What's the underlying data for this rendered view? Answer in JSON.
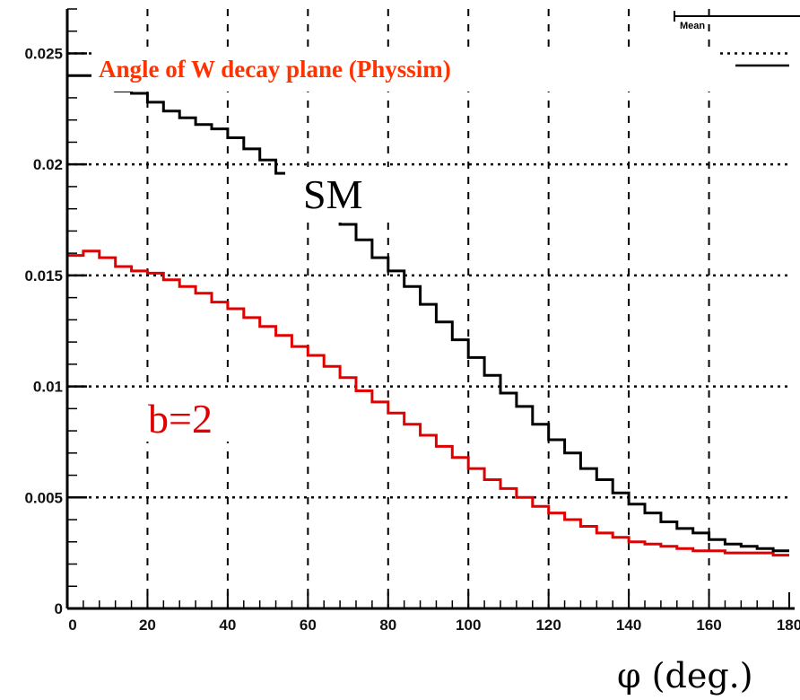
{
  "chart_data": {
    "type": "line",
    "title": "Angle of W decay plane (Physsim)",
    "xlabel": "φ (deg.)",
    "ylabel": "",
    "xlim": [
      0,
      180
    ],
    "ylim": [
      0,
      0.027
    ],
    "xticks": [
      "0",
      "20",
      "40",
      "60",
      "80",
      "100",
      "120",
      "140",
      "160",
      "180"
    ],
    "yticks": [
      "0",
      "0.005",
      "0.01",
      "0.015",
      "0.02",
      "0.025"
    ],
    "grid": true,
    "stats_box_label": "Mean",
    "annotations": [
      {
        "text": "SM",
        "color": "#000000"
      },
      {
        "text": "b=2",
        "color": "#e00000"
      }
    ],
    "series": [
      {
        "name": "SM",
        "color": "#000000",
        "bin_width": 4,
        "values": [
          0.024,
          0.024,
          0.0236,
          0.0233,
          0.0232,
          0.0228,
          0.0224,
          0.0221,
          0.0218,
          0.0216,
          0.0212,
          0.0207,
          0.0202,
          0.0196,
          0.0191,
          0.0186,
          0.018,
          0.0173,
          0.0166,
          0.0158,
          0.0152,
          0.0145,
          0.0137,
          0.0129,
          0.0121,
          0.0113,
          0.0105,
          0.0097,
          0.0091,
          0.0083,
          0.0076,
          0.007,
          0.0063,
          0.0058,
          0.0052,
          0.0047,
          0.0043,
          0.0039,
          0.0036,
          0.0034,
          0.0031,
          0.0029,
          0.0028,
          0.0027,
          0.0026
        ]
      },
      {
        "name": "b=2",
        "color": "#e00000",
        "bin_width": 4,
        "values": [
          0.0159,
          0.0161,
          0.0158,
          0.0154,
          0.0152,
          0.0151,
          0.0148,
          0.0145,
          0.0142,
          0.0138,
          0.0135,
          0.0131,
          0.0127,
          0.0123,
          0.0118,
          0.0114,
          0.0109,
          0.0104,
          0.0098,
          0.0093,
          0.0088,
          0.0083,
          0.0078,
          0.0073,
          0.0068,
          0.0063,
          0.0058,
          0.0054,
          0.005,
          0.0046,
          0.0043,
          0.004,
          0.0037,
          0.0034,
          0.0032,
          0.003,
          0.0029,
          0.0028,
          0.0027,
          0.0026,
          0.0026,
          0.0025,
          0.0025,
          0.0025,
          0.0024
        ]
      }
    ]
  },
  "colors": {
    "title": "#ff3300",
    "sm": "#000000",
    "b2": "#e00000"
  }
}
